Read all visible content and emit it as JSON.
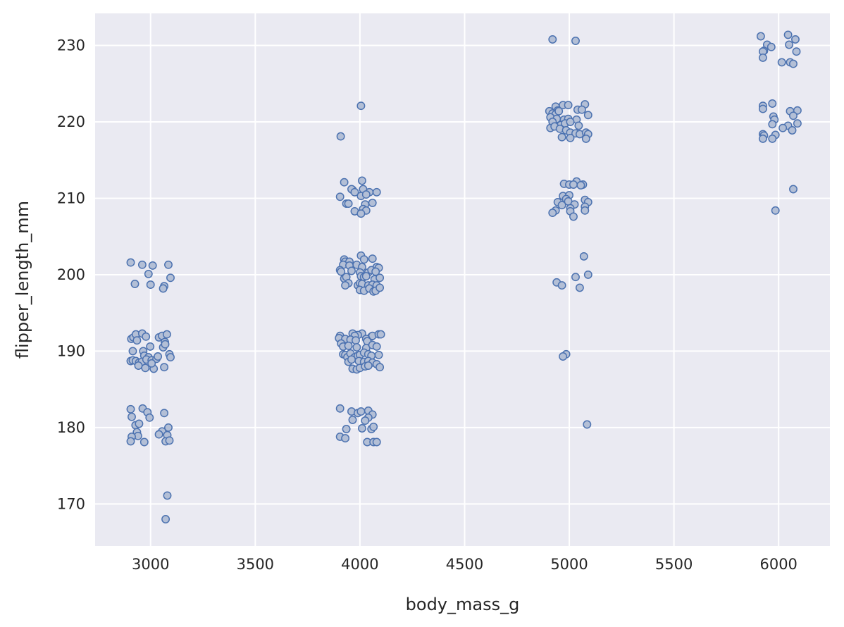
{
  "chart_data": {
    "type": "scatter",
    "title": "",
    "xlabel": "body_mass_g",
    "ylabel": "flipper_length_mm",
    "xlim": [
      2735,
      6245
    ],
    "ylim": [
      164.5,
      234.2
    ],
    "xticks": [
      3000,
      3500,
      4000,
      4500,
      5000,
      5500,
      6000
    ],
    "yticks": [
      170,
      180,
      190,
      200,
      210,
      220,
      230
    ],
    "grid": true,
    "marker": {
      "fill": "#b3bfd6",
      "stroke": "#4c72b0",
      "shape": "circle"
    },
    "background": "#eaeaf2",
    "gridColor": "#ffffff",
    "series": [
      {
        "points": [
          [
            2905,
            201.6
          ],
          [
            2960,
            201.3
          ],
          [
            3010,
            201.2
          ],
          [
            3085,
            201.3
          ],
          [
            3095,
            199.6
          ],
          [
            2990,
            200.1
          ],
          [
            2925,
            198.8
          ],
          [
            3000,
            198.7
          ],
          [
            3065,
            198.5
          ],
          [
            3060,
            198.2
          ],
          [
            2908,
            191.6
          ],
          [
            2918,
            191.8
          ],
          [
            2930,
            192.2
          ],
          [
            2935,
            191.4
          ],
          [
            2960,
            192.3
          ],
          [
            2978,
            191.9
          ],
          [
            3040,
            191.8
          ],
          [
            3055,
            192.0
          ],
          [
            3078,
            192.2
          ],
          [
            3068,
            191.2
          ],
          [
            2915,
            190.0
          ],
          [
            2965,
            190.0
          ],
          [
            2998,
            190.6
          ],
          [
            3060,
            190.5
          ],
          [
            3070,
            190.9
          ],
          [
            3090,
            189.6
          ],
          [
            3095,
            189.2
          ],
          [
            2970,
            189.4
          ],
          [
            2990,
            189.2
          ],
          [
            2905,
            188.7
          ],
          [
            2915,
            188.8
          ],
          [
            2930,
            188.7
          ],
          [
            2945,
            188.5
          ],
          [
            2958,
            188.6
          ],
          [
            2980,
            188.9
          ],
          [
            3005,
            188.8
          ],
          [
            3028,
            189.0
          ],
          [
            3035,
            189.3
          ],
          [
            2942,
            188.1
          ],
          [
            2975,
            187.8
          ],
          [
            3015,
            187.7
          ],
          [
            3065,
            187.9
          ],
          [
            3005,
            188.4
          ],
          [
            2905,
            182.4
          ],
          [
            2962,
            182.5
          ],
          [
            2985,
            182.0
          ],
          [
            3065,
            181.9
          ],
          [
            2910,
            181.4
          ],
          [
            2995,
            181.3
          ],
          [
            2928,
            180.3
          ],
          [
            2945,
            180.5
          ],
          [
            3085,
            180.0
          ],
          [
            2935,
            179.4
          ],
          [
            3055,
            179.5
          ],
          [
            3040,
            179.1
          ],
          [
            2940,
            178.9
          ],
          [
            3080,
            179.0
          ],
          [
            2910,
            178.8
          ],
          [
            2905,
            178.2
          ],
          [
            2970,
            178.1
          ],
          [
            3072,
            178.2
          ],
          [
            3090,
            178.3
          ],
          [
            3080,
            171.1
          ],
          [
            3072,
            168.0
          ],
          [
            4005,
            222.1
          ],
          [
            3908,
            218.1
          ],
          [
            3925,
            212.1
          ],
          [
            4010,
            212.3
          ],
          [
            3965,
            211.1
          ],
          [
            3960,
            211.2
          ],
          [
            3975,
            210.8
          ],
          [
            4015,
            211.2
          ],
          [
            4045,
            210.8
          ],
          [
            4080,
            210.8
          ],
          [
            3905,
            210.2
          ],
          [
            4005,
            210.3
          ],
          [
            4030,
            210.5
          ],
          [
            3935,
            209.3
          ],
          [
            3945,
            209.3
          ],
          [
            4025,
            209.2
          ],
          [
            4060,
            209.4
          ],
          [
            4015,
            208.6
          ],
          [
            4030,
            208.4
          ],
          [
            3975,
            208.3
          ],
          [
            4005,
            208.0
          ],
          [
            4005,
            202.5
          ],
          [
            4060,
            202.1
          ],
          [
            4020,
            202.0
          ],
          [
            3925,
            202.0
          ],
          [
            3930,
            201.7
          ],
          [
            3950,
            201.7
          ],
          [
            3920,
            201.3
          ],
          [
            3950,
            201.2
          ],
          [
            3985,
            201.3
          ],
          [
            4010,
            201.0
          ],
          [
            4080,
            201.0
          ],
          [
            4090,
            200.9
          ],
          [
            3905,
            200.6
          ],
          [
            3910,
            200.4
          ],
          [
            3960,
            200.5
          ],
          [
            4000,
            200.3
          ],
          [
            4040,
            200.3
          ],
          [
            4055,
            200.6
          ],
          [
            4075,
            200.4
          ],
          [
            3925,
            199.5
          ],
          [
            3935,
            199.7
          ],
          [
            4005,
            199.8
          ],
          [
            4020,
            199.7
          ],
          [
            4030,
            199.8
          ],
          [
            4070,
            199.4
          ],
          [
            4095,
            199.6
          ],
          [
            3945,
            198.9
          ],
          [
            3930,
            198.6
          ],
          [
            3990,
            198.6
          ],
          [
            4000,
            198.9
          ],
          [
            4010,
            198.8
          ],
          [
            4040,
            198.6
          ],
          [
            4060,
            198.7
          ],
          [
            4080,
            198.6
          ],
          [
            4000,
            198.0
          ],
          [
            4020,
            197.9
          ],
          [
            4045,
            198.2
          ],
          [
            4065,
            197.8
          ],
          [
            4075,
            197.9
          ],
          [
            4095,
            198.3
          ],
          [
            3905,
            192.0
          ],
          [
            3965,
            192.3
          ],
          [
            4010,
            192.3
          ],
          [
            3990,
            192.1
          ],
          [
            3975,
            192.0
          ],
          [
            4055,
            191.9
          ],
          [
            4060,
            192.0
          ],
          [
            4090,
            192.2
          ],
          [
            4100,
            192.2
          ],
          [
            3900,
            191.7
          ],
          [
            3930,
            191.6
          ],
          [
            3910,
            191.0
          ],
          [
            3955,
            191.5
          ],
          [
            3980,
            191.4
          ],
          [
            4030,
            191.6
          ],
          [
            4035,
            191.3
          ],
          [
            3920,
            190.6
          ],
          [
            3945,
            190.7
          ],
          [
            3985,
            190.5
          ],
          [
            4030,
            190.4
          ],
          [
            4060,
            190.8
          ],
          [
            4080,
            190.6
          ],
          [
            3920,
            189.6
          ],
          [
            3930,
            189.5
          ],
          [
            3940,
            189.2
          ],
          [
            3955,
            189.7
          ],
          [
            3975,
            189.2
          ],
          [
            3990,
            189.4
          ],
          [
            4000,
            189.5
          ],
          [
            4020,
            189.8
          ],
          [
            4040,
            189.6
          ],
          [
            4055,
            189.4
          ],
          [
            4090,
            189.5
          ],
          [
            3945,
            188.6
          ],
          [
            3960,
            188.9
          ],
          [
            3995,
            188.7
          ],
          [
            4020,
            188.6
          ],
          [
            4040,
            188.7
          ],
          [
            4060,
            188.5
          ],
          [
            4080,
            188.3
          ],
          [
            3965,
            187.7
          ],
          [
            3985,
            187.6
          ],
          [
            4000,
            187.8
          ],
          [
            4025,
            188.0
          ],
          [
            4040,
            188.1
          ],
          [
            4095,
            187.9
          ],
          [
            3905,
            182.5
          ],
          [
            3960,
            182.1
          ],
          [
            3990,
            181.9
          ],
          [
            4005,
            182.1
          ],
          [
            4040,
            182.2
          ],
          [
            4060,
            181.7
          ],
          [
            4040,
            181.3
          ],
          [
            3965,
            181.0
          ],
          [
            4025,
            180.9
          ],
          [
            3935,
            179.8
          ],
          [
            4010,
            179.9
          ],
          [
            4055,
            179.8
          ],
          [
            4065,
            180.1
          ],
          [
            3905,
            178.8
          ],
          [
            3930,
            178.6
          ],
          [
            4035,
            178.1
          ],
          [
            4065,
            178.1
          ],
          [
            4080,
            178.1
          ],
          [
            4920,
            230.8
          ],
          [
            5030,
            230.6
          ],
          [
            4935,
            222.0
          ],
          [
            4970,
            222.2
          ],
          [
            4995,
            222.2
          ],
          [
            5075,
            222.3
          ],
          [
            4945,
            221.5
          ],
          [
            4905,
            221.4
          ],
          [
            4920,
            221.1
          ],
          [
            4935,
            221.0
          ],
          [
            4950,
            221.4
          ],
          [
            5040,
            221.6
          ],
          [
            5060,
            221.6
          ],
          [
            5090,
            220.9
          ],
          [
            4910,
            220.6
          ],
          [
            4940,
            220.4
          ],
          [
            4975,
            220.3
          ],
          [
            4995,
            220.4
          ],
          [
            5035,
            220.3
          ],
          [
            4920,
            220.0
          ],
          [
            4960,
            219.6
          ],
          [
            4980,
            219.8
          ],
          [
            5005,
            220.0
          ],
          [
            5045,
            219.5
          ],
          [
            4910,
            219.2
          ],
          [
            4930,
            219.4
          ],
          [
            4955,
            219.1
          ],
          [
            4985,
            218.9
          ],
          [
            5005,
            218.6
          ],
          [
            5030,
            218.5
          ],
          [
            5050,
            218.4
          ],
          [
            5080,
            218.6
          ],
          [
            5090,
            218.4
          ],
          [
            4965,
            218.0
          ],
          [
            5005,
            217.9
          ],
          [
            5080,
            217.8
          ],
          [
            5035,
            212.2
          ],
          [
            5065,
            211.8
          ],
          [
            4975,
            211.9
          ],
          [
            5000,
            211.8
          ],
          [
            5020,
            211.8
          ],
          [
            5055,
            211.7
          ],
          [
            4970,
            210.3
          ],
          [
            5000,
            210.4
          ],
          [
            4985,
            209.9
          ],
          [
            5075,
            209.8
          ],
          [
            5090,
            209.5
          ],
          [
            4945,
            209.5
          ],
          [
            4995,
            209.6
          ],
          [
            4965,
            209.1
          ],
          [
            5025,
            209.2
          ],
          [
            5075,
            208.9
          ],
          [
            5005,
            208.7
          ],
          [
            5005,
            208.3
          ],
          [
            4935,
            208.4
          ],
          [
            4920,
            208.1
          ],
          [
            5075,
            208.4
          ],
          [
            5020,
            207.6
          ],
          [
            5070,
            202.4
          ],
          [
            5090,
            200.0
          ],
          [
            5030,
            199.7
          ],
          [
            4940,
            199.0
          ],
          [
            4965,
            198.6
          ],
          [
            5050,
            198.3
          ],
          [
            4985,
            189.6
          ],
          [
            4970,
            189.3
          ],
          [
            5085,
            180.4
          ],
          [
            5915,
            231.2
          ],
          [
            6045,
            231.4
          ],
          [
            6080,
            230.8
          ],
          [
            5945,
            230.1
          ],
          [
            5965,
            229.8
          ],
          [
            6050,
            230.1
          ],
          [
            5930,
            229.3
          ],
          [
            5925,
            229.2
          ],
          [
            6085,
            229.2
          ],
          [
            5925,
            228.4
          ],
          [
            6015,
            227.8
          ],
          [
            6055,
            227.8
          ],
          [
            6070,
            227.6
          ],
          [
            5925,
            222.1
          ],
          [
            5970,
            222.4
          ],
          [
            5925,
            221.7
          ],
          [
            6055,
            221.4
          ],
          [
            6090,
            221.5
          ],
          [
            6070,
            220.8
          ],
          [
            5975,
            220.7
          ],
          [
            5980,
            220.3
          ],
          [
            6090,
            219.8
          ],
          [
            5970,
            219.7
          ],
          [
            6045,
            219.5
          ],
          [
            6020,
            219.2
          ],
          [
            6065,
            218.9
          ],
          [
            5925,
            218.4
          ],
          [
            5930,
            218.2
          ],
          [
            5985,
            218.3
          ],
          [
            5925,
            217.8
          ],
          [
            5970,
            217.8
          ],
          [
            6070,
            211.2
          ],
          [
            5985,
            208.4
          ]
        ]
      }
    ]
  }
}
